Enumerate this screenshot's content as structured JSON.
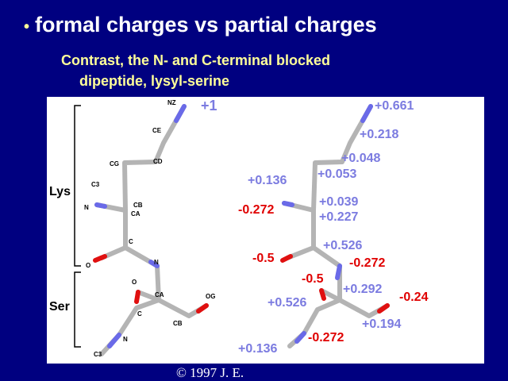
{
  "header": {
    "title": "formal charges vs partial charges",
    "subtitle": [
      "Contrast, the N- and C-terminal blocked",
      "dipeptide, lysyl-serine"
    ]
  },
  "figure": {
    "residues": [
      "Lys",
      "Ser"
    ],
    "atoms": [
      "NZ",
      "CE",
      "CD",
      "CG",
      "C3",
      "CB",
      "N",
      "CA",
      "C",
      "O",
      "N",
      "O",
      "CA",
      "C",
      "OG",
      "CB",
      "N",
      "C3"
    ],
    "formal_charge": "+1",
    "partial_charges": [
      "+0.661",
      "+0.218",
      "+0.048",
      "+0.053",
      "+0.136",
      "+0.039",
      "-0.272",
      "+0.227",
      "+0.526",
      "-0.5",
      "-0.272",
      "-0.5",
      "+0.292",
      "-0.24",
      "+0.526",
      "+0.194",
      "-0.272",
      "+0.136"
    ]
  },
  "footer": "© 1997 J. E."
}
